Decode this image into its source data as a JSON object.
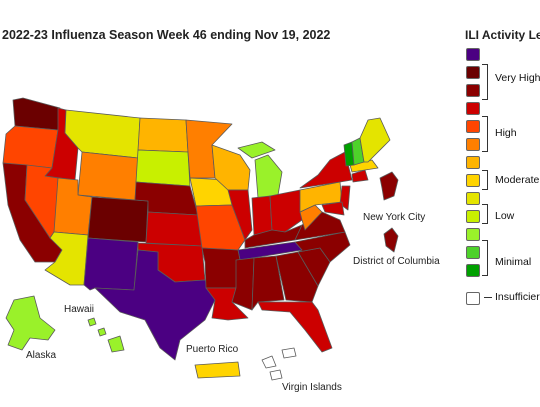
{
  "title": "2022-23 Influenza Season Week 46 ending Nov 19, 2022",
  "legend": {
    "title": "ILI Activity Le",
    "colors": [
      "#4b0082",
      "#6b0000",
      "#8b0000",
      "#cc0000",
      "#ff4500",
      "#ff7f00",
      "#ffb400",
      "#ffd400",
      "#e4e400",
      "#c8f000",
      "#9af12a",
      "#4ed22a",
      "#00a000",
      "#ffffff"
    ],
    "groups": [
      "Very High",
      "High",
      "Moderate",
      "Low",
      "Minimal",
      "Insufficier"
    ]
  },
  "labels": {
    "nyc": "New York City",
    "dc": "District of Columbia",
    "hawaii": "Hawaii",
    "alaska": "Alaska",
    "pr": "Puerto Rico",
    "vi": "Virgin Islands"
  },
  "colors": {
    "very_high_purple": "#4b0082",
    "very_high_dark": "#6b0000",
    "very_high": "#8b0000",
    "high_red": "#cc0000",
    "high_orange_red": "#ff4500",
    "high_orange": "#ff7f00",
    "moderate": "#ffb400",
    "low_yellow": "#e4e400",
    "low_green": "#c8f000",
    "minimal": "#9af12a",
    "minimal_green": "#00a000"
  }
}
